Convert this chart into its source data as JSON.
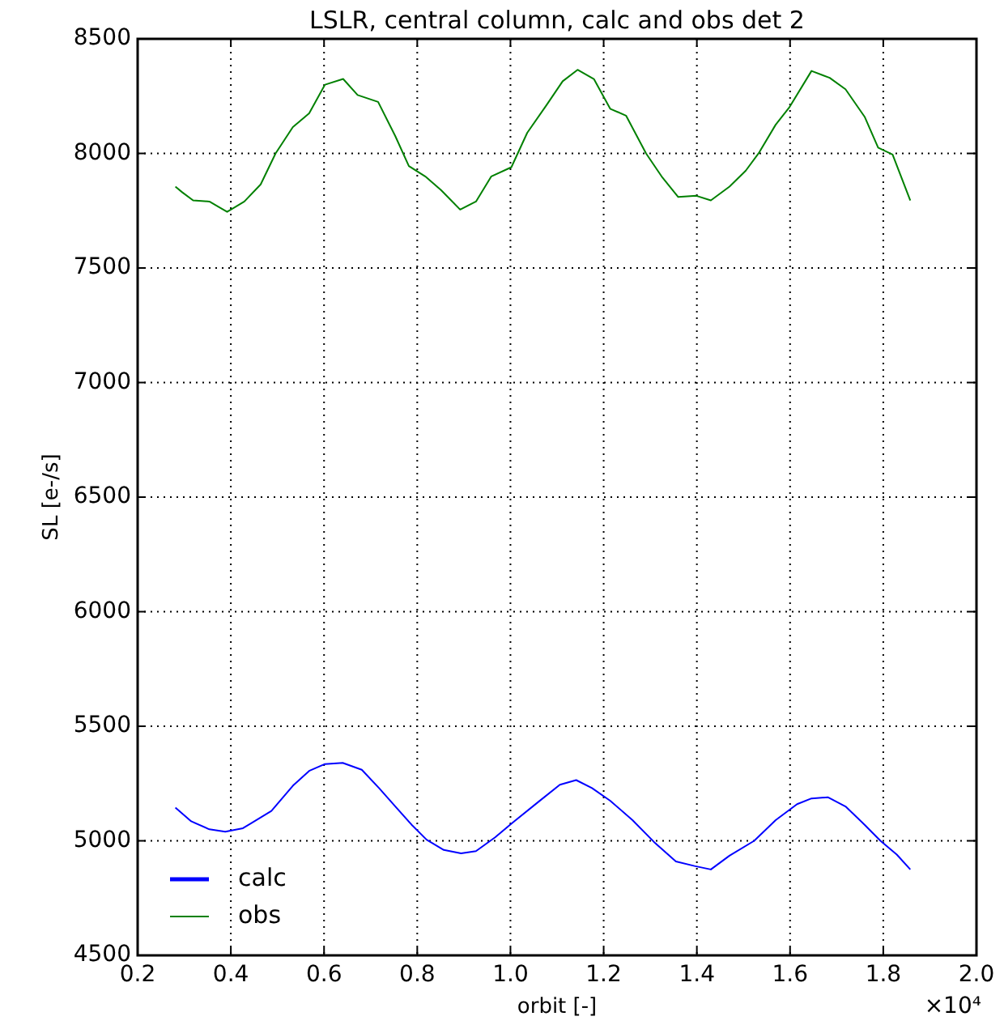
{
  "chart_data": {
    "type": "line",
    "title": "LSLR, central column, calc and obs det 2",
    "xlabel": "orbit [-]",
    "ylabel": "SL [e-/s]",
    "xlim": [
      0.2,
      2.0
    ],
    "xticks": [
      0.2,
      0.4,
      0.6,
      0.8,
      {
        "value": 1,
        "label": "1.0"
      },
      1.2,
      1.4,
      1.6,
      1.8,
      {
        "value": 2,
        "label": "2.0"
      }
    ],
    "ylim": [
      4500,
      8500
    ],
    "yticks": [
      4500,
      5000,
      5500,
      6000,
      6500,
      7000,
      7500,
      8000,
      8500
    ],
    "grid": true,
    "legend": "bottom left",
    "annotations": [
      "×10⁴"
    ],
    "series": [
      {
        "name": "calc",
        "color": "#0000ff",
        "x": [
          0.281,
          0.315,
          0.354,
          0.388,
          0.426,
          0.487,
          0.533,
          0.568,
          0.602,
          0.64,
          0.681,
          0.718,
          0.753,
          0.788,
          0.82,
          0.857,
          0.894,
          0.926,
          0.967,
          1.008,
          1.06,
          1.106,
          1.141,
          1.175,
          1.214,
          1.262,
          1.308,
          1.355,
          1.395,
          1.43,
          1.47,
          1.523,
          1.569,
          1.615,
          1.646,
          1.681,
          1.719,
          1.76,
          1.794,
          1.829,
          1.858
        ],
        "values": [
          5145,
          5085,
          5050,
          5040,
          5055,
          5130,
          5240,
          5305,
          5335,
          5340,
          5310,
          5230,
          5150,
          5070,
          5005,
          4960,
          4945,
          4955,
          5015,
          5085,
          5170,
          5245,
          5265,
          5230,
          5175,
          5090,
          4995,
          4910,
          4890,
          4875,
          4935,
          5000,
          5090,
          5160,
          5185,
          5190,
          5150,
          5070,
          5000,
          4940,
          4875
        ]
      },
      {
        "name": "obs",
        "color": "#008000",
        "x": [
          0.281,
          0.296,
          0.319,
          0.354,
          0.392,
          0.429,
          0.464,
          0.496,
          0.533,
          0.568,
          0.602,
          0.641,
          0.672,
          0.716,
          0.753,
          0.782,
          0.817,
          0.851,
          0.892,
          0.926,
          0.959,
          1.002,
          1.036,
          1.077,
          1.112,
          1.144,
          1.179,
          1.214,
          1.248,
          1.291,
          1.326,
          1.36,
          1.399,
          1.43,
          1.47,
          1.505,
          1.534,
          1.569,
          1.598,
          1.646,
          1.685,
          1.719,
          1.76,
          1.789,
          1.82,
          1.858
        ],
        "values": [
          7855,
          7830,
          7795,
          7790,
          7745,
          7790,
          7865,
          8000,
          8115,
          8175,
          8300,
          8325,
          8255,
          8225,
          8075,
          7945,
          7900,
          7840,
          7755,
          7790,
          7900,
          7940,
          8090,
          8210,
          8315,
          8365,
          8325,
          8195,
          8165,
          8000,
          7895,
          7810,
          7815,
          7795,
          7855,
          7925,
          8005,
          8125,
          8200,
          8360,
          8330,
          8280,
          8160,
          8025,
          7995,
          7795
        ]
      }
    ]
  }
}
